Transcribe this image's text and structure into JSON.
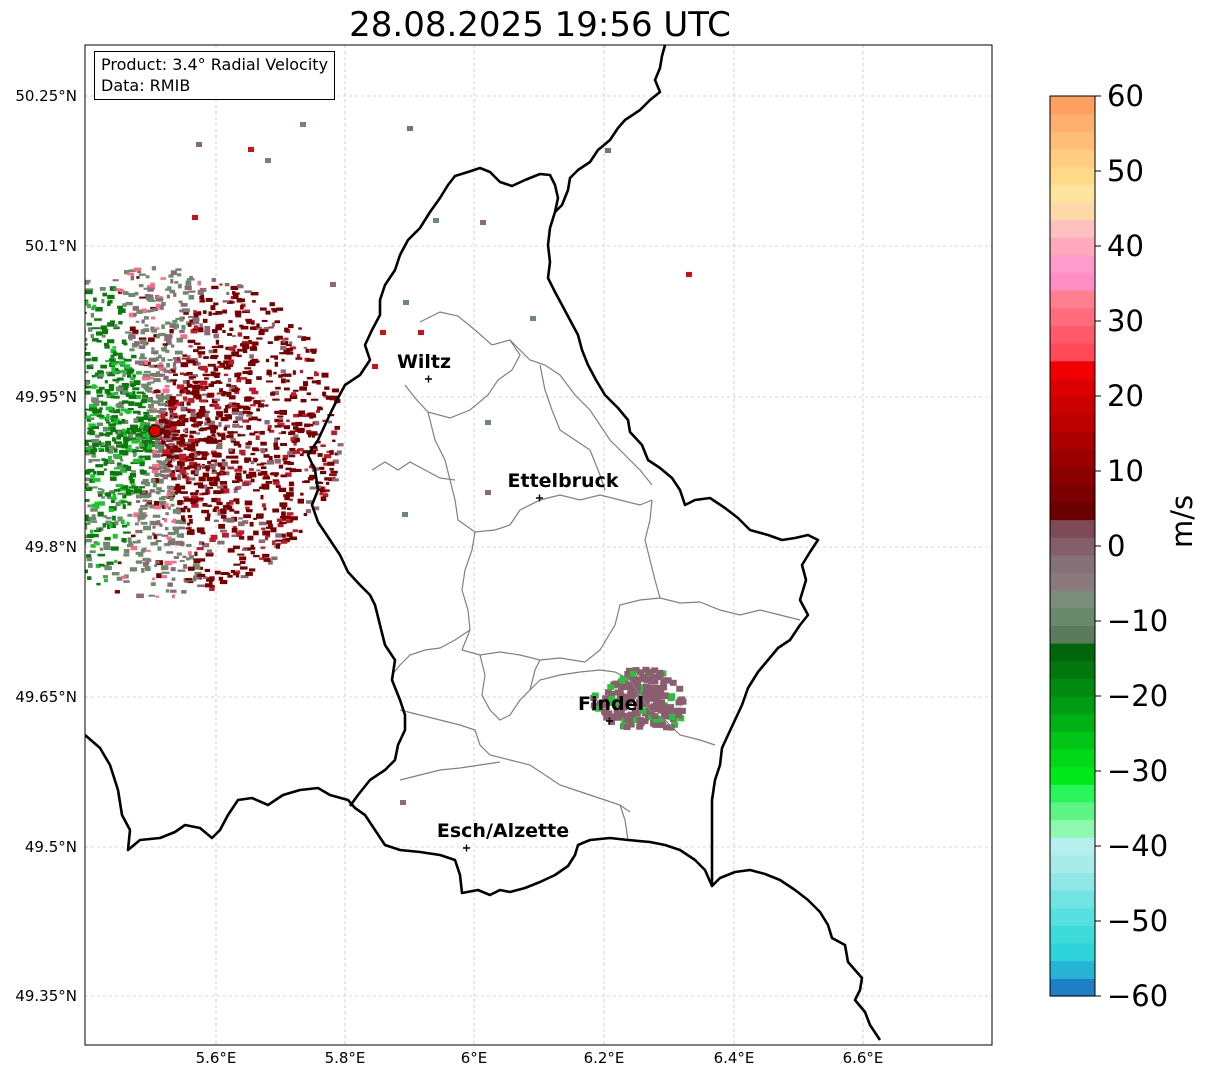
{
  "title": "28.08.2025 19:56 UTC",
  "info": {
    "product": "Product: 3.4° Radial Velocity",
    "source": "Data: RMIB"
  },
  "axes": {
    "lat_ticks": [
      "50.25°N",
      "50.1°N",
      "49.95°N",
      "49.8°N",
      "49.65°N",
      "49.5°N",
      "49.35°N"
    ],
    "lon_ticks": [
      "5.6°E",
      "5.8°E",
      "6°E",
      "6.2°E",
      "6.4°E",
      "6.6°E"
    ]
  },
  "cities": [
    {
      "name": "Wiltz",
      "lon": 5.93,
      "lat": 49.967
    },
    {
      "name": "Ettelbruck",
      "lon": 6.1,
      "lat": 49.848
    },
    {
      "name": "Findel",
      "lon": 6.21,
      "lat": 49.627
    },
    {
      "name": "Esch/Alzette",
      "lon": 5.99,
      "lat": 49.5
    }
  ],
  "radar_site": {
    "lon": 5.505,
    "lat": 49.914,
    "color": "#e00000"
  },
  "colorbar": {
    "unit": "m/s",
    "ticks": [
      "60",
      "50",
      "40",
      "30",
      "20",
      "10",
      "0",
      "−10",
      "−20",
      "−30",
      "−40",
      "−50",
      "−60"
    ],
    "colors_bottom_to_top": [
      "#1f7fc4",
      "#27b3d4",
      "#2ed3da",
      "#3edbdb",
      "#56e0df",
      "#6fe4e3",
      "#8fe8e6",
      "#a8ecea",
      "#b7eeee",
      "#8ef7b0",
      "#5ef585",
      "#2bf55a",
      "#00ea1a",
      "#00d818",
      "#00c416",
      "#00b014",
      "#009c12",
      "#008a10",
      "#00780e",
      "#00660b",
      "#5c7a5e",
      "#6a8a6c",
      "#7a8c7a",
      "#8a7a7e",
      "#847078",
      "#845e68",
      "#7e4a56",
      "#6a0000",
      "#7a0000",
      "#8a0000",
      "#9a0000",
      "#aa0000",
      "#bc0000",
      "#cc0000",
      "#de0000",
      "#f00000",
      "#ff4858",
      "#ff5a6a",
      "#ff6c7c",
      "#ff7e90",
      "#ff8ec4",
      "#ff9ccc",
      "#ffaabc",
      "#ffc0c0",
      "#ffd8a8",
      "#ffe4a0",
      "#ffd888",
      "#ffcc80",
      "#ffbe78",
      "#ffb070",
      "#ffa060"
    ]
  },
  "velocity_palette": {
    "receding": "#7a0000",
    "approaching": "#0a7a0a",
    "zero": "#6e8a6e",
    "neutral": "#8a6a74"
  }
}
